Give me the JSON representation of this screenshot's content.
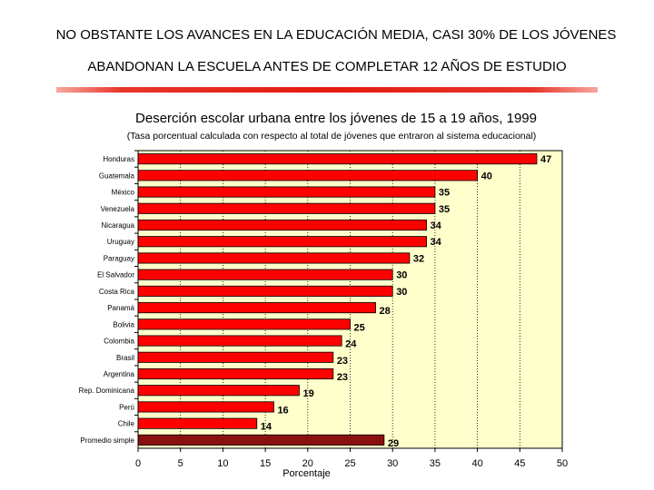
{
  "slide": {
    "heading_line1": "NO OBSTANTE LOS AVANCES EN LA EDUCACIÓN MEDIA, CASI  30% DE LOS  JÓVENES",
    "heading_line2": "ABANDONAN LA ESCUELA ANTES DE COMPLETAR 12 AÑOS DE ESTUDIO",
    "accent_color": "#e31b0f"
  },
  "chart_data": {
    "type": "bar",
    "orientation": "horizontal",
    "title": "Deserción escolar urbana entre los jóvenes de 15 a 19 años, 1999",
    "subtitle": "(Tasa porcentual calculada con respecto al total de jóvenes que entraron al sistema educacional)",
    "xlabel": "Porcentaje",
    "xlim": [
      0,
      50
    ],
    "xticks": [
      0,
      5,
      10,
      15,
      20,
      25,
      30,
      35,
      40,
      45,
      50
    ],
    "categories": [
      "Honduras",
      "Guatemala",
      "México",
      "Venezuela",
      "Nicaragua",
      "Uruguay",
      "Paraguay",
      "El Salvador",
      "Costa Rica",
      "Panamá",
      "Bolivia",
      "Colombia",
      "Brasil",
      "Argentina",
      "Rep. Dominicana",
      "Perú",
      "Chile",
      "Promedio simple"
    ],
    "values": [
      47,
      40,
      35,
      35,
      34,
      34,
      32,
      30,
      30,
      28,
      25,
      24,
      23,
      23,
      19,
      16,
      14,
      29
    ],
    "highlight_category": "Promedio simple",
    "bar_color": "#ff0000",
    "highlight_color": "#8b1010",
    "plot_background": "#ffffcc",
    "grid": true
  }
}
